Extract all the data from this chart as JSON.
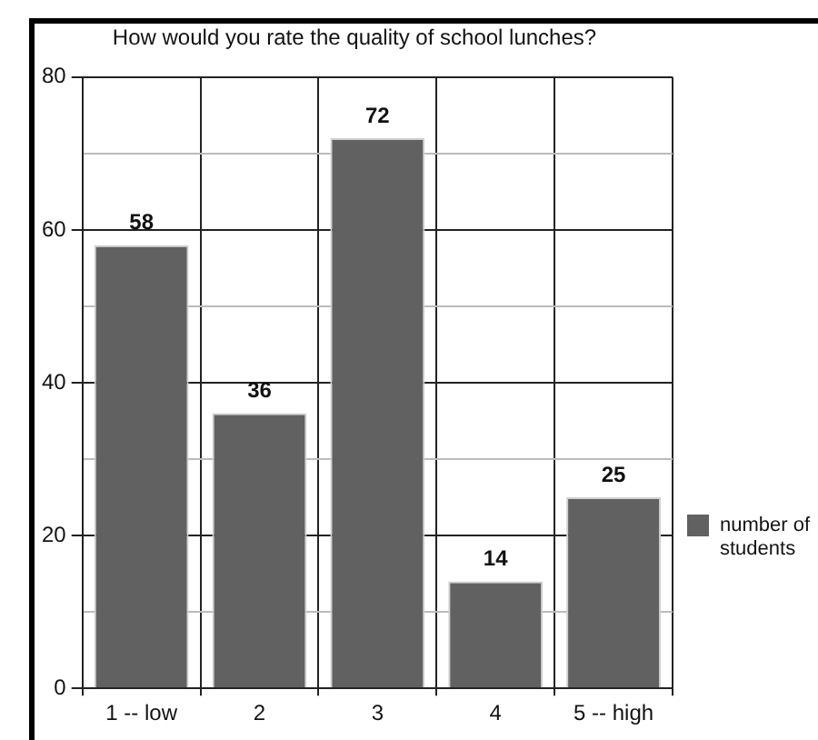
{
  "chart_data": {
    "type": "bar",
    "title": "How would you rate the quality of school lunches?",
    "categories": [
      "1 -- low",
      "2",
      "3",
      "4",
      "5 -- high"
    ],
    "series": [
      {
        "name": "number of students",
        "color": "#616161",
        "values": [
          58,
          36,
          72,
          14,
          25
        ]
      }
    ],
    "ylim": [
      0,
      80
    ],
    "yticks": [
      0,
      {
        "value": 10,
        "label": null
      },
      20,
      {
        "value": 30,
        "label": null
      },
      40,
      {
        "value": 50,
        "label": null
      },
      60,
      {
        "value": 70,
        "label": null
      },
      80
    ],
    "grid": true,
    "legend": "right",
    "data_labels": true
  }
}
